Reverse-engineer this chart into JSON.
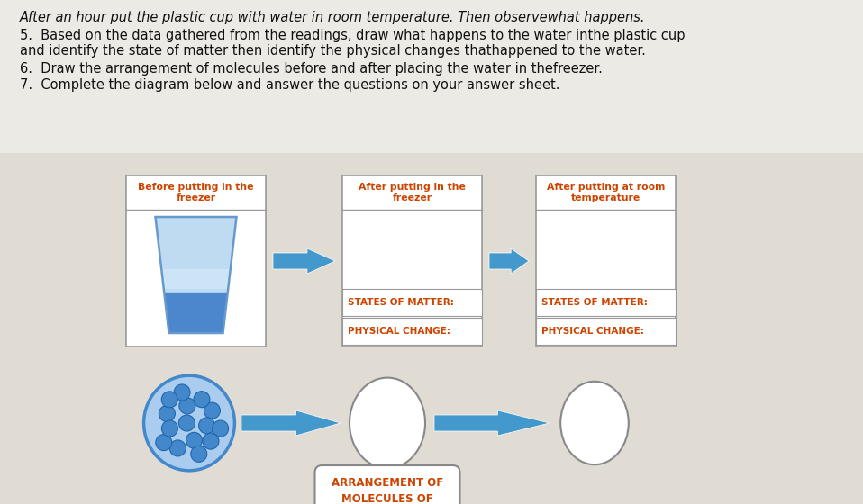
{
  "background_color": "#d8d4cc",
  "text_bg": "#f0eeea",
  "text_lines": [
    {
      "text": "After an hour put the plastic cup with water in room temperature. Then observewhat happens.",
      "style": "italic",
      "size": 10.5
    },
    {
      "text": "5.  Based on the data gathered from the readings, draw what happens to the water inthe plastic cup",
      "style": "normal",
      "size": 10.5
    },
    {
      "text": "and identify the state of matter then identify the physical changes thathappened to the water.",
      "style": "normal",
      "size": 10.5
    },
    {
      "text": "6.  Draw the arrangement of molecules before and after placing the water in thefreezer.",
      "style": "normal",
      "size": 10.5
    },
    {
      "text": "7.  Complete the diagram below and answer the questions on your answer sheet.",
      "style": "normal",
      "size": 10.5
    }
  ],
  "box1_title": "Before putting in the\nfreezer",
  "box2_title": "After putting in the\nfreezer",
  "box3_title": "After putting at room\ntemperature",
  "states_label": "STATES OF MATTER:",
  "physical_label": "PHYSICAL CHANGE:",
  "arrangement_label": "ARRANGEMENT OF\nMOLECULES OF\nWATER",
  "title_color": "#cc4400",
  "label_color": "#cc4400",
  "arrow_color": "#4499cc",
  "box_border_color": "#999999",
  "molecule_fill": "#4488cc",
  "molecule_border": "#2266aa",
  "molecule_bg": "#aaccee",
  "cup_light": "#b8d8f0",
  "cup_mid": "#80b8e8",
  "cup_dark": "#3878c8",
  "cup_edge": "#6699cc"
}
